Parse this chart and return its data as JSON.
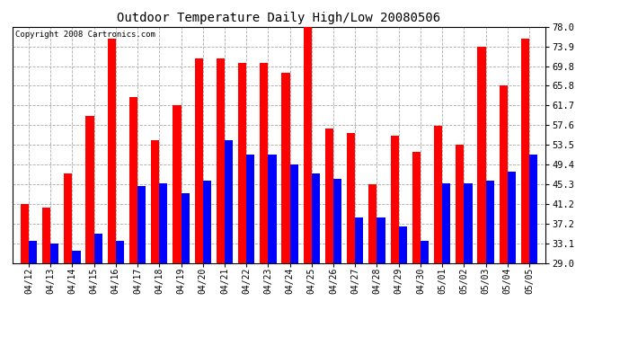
{
  "title": "Outdoor Temperature Daily High/Low 20080506",
  "copyright": "Copyright 2008 Cartronics.com",
  "dates": [
    "04/12",
    "04/13",
    "04/14",
    "04/15",
    "04/16",
    "04/17",
    "04/18",
    "04/19",
    "04/20",
    "04/21",
    "04/22",
    "04/23",
    "04/24",
    "04/25",
    "04/26",
    "04/27",
    "04/28",
    "04/29",
    "04/30",
    "05/01",
    "05/02",
    "05/03",
    "05/04",
    "05/05"
  ],
  "high_temps": [
    41.2,
    40.5,
    47.5,
    59.5,
    75.5,
    63.5,
    54.5,
    61.7,
    71.5,
    71.5,
    70.5,
    70.5,
    68.5,
    78.0,
    57.0,
    56.0,
    45.3,
    55.5,
    52.0,
    57.5,
    53.5,
    73.9,
    65.8,
    75.5
  ],
  "low_temps": [
    33.5,
    33.0,
    31.5,
    35.0,
    33.5,
    45.0,
    45.5,
    43.5,
    46.0,
    54.5,
    51.5,
    51.5,
    49.5,
    47.5,
    46.5,
    38.5,
    38.5,
    36.5,
    33.5,
    45.5,
    45.5,
    46.0,
    48.0,
    51.5
  ],
  "high_color": "#ff0000",
  "low_color": "#0000ff",
  "bg_color": "#ffffff",
  "grid_color": "#aaaaaa",
  "yticks": [
    29.0,
    33.1,
    37.2,
    41.2,
    45.3,
    49.4,
    53.5,
    57.6,
    61.7,
    65.8,
    69.8,
    73.9,
    78.0
  ],
  "ymin": 29.0,
  "ymax": 78.0,
  "bar_width": 0.38
}
